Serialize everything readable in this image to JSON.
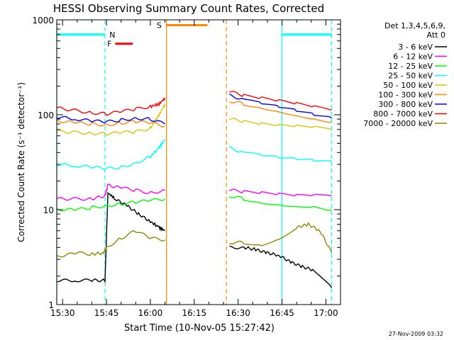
{
  "chart_data": {
    "type": "line",
    "title": "HESSI Observing Summary Count Rates, Corrected",
    "xlabel": "Start Time (10-Nov-05 15:27:42)",
    "ylabel": "Corrected Count Rate (s⁻¹ detector⁻¹)",
    "yscale": "log",
    "ylim": [
      1,
      1000
    ],
    "xlim_minutes": [
      -2.0,
      95.0
    ],
    "x_ticks": [
      {
        "label": "15:30",
        "minute": 0
      },
      {
        "label": "15:45",
        "minute": 15
      },
      {
        "label": "16:00",
        "minute": 30
      },
      {
        "label": "16:15",
        "minute": 45
      },
      {
        "label": "16:30",
        "minute": 60
      },
      {
        "label": "16:45",
        "minute": 75
      },
      {
        "label": "17:00",
        "minute": 90
      }
    ],
    "y_ticks": [
      {
        "label": "1",
        "value": 1
      },
      {
        "label": "10",
        "value": 10
      },
      {
        "label": "100",
        "value": 100
      },
      {
        "label": "1000",
        "value": 1000
      }
    ],
    "legend": {
      "header": [
        "Det 1,3,4,5,6,9,",
        "Att 0"
      ],
      "placement": "right"
    },
    "series": [
      {
        "name": "3 - 6 keV",
        "color": "#000000",
        "segments": [
          [
            [
              -2,
              1.8
            ],
            [
              5,
              1.8
            ],
            [
              10,
              1.8
            ],
            [
              14.5,
              1.8
            ],
            [
              15.5,
              15
            ],
            [
              18,
              13
            ],
            [
              22,
              11
            ],
            [
              26,
              9
            ],
            [
              30,
              7.5
            ],
            [
              33,
              6.5
            ],
            [
              35,
              6
            ]
          ],
          [
            [
              57,
              4
            ],
            [
              62,
              4
            ],
            [
              66,
              3.8
            ],
            [
              70,
              3.5
            ],
            [
              74,
              3.3
            ],
            [
              78,
              2.8
            ],
            [
              82,
              2.5
            ],
            [
              86,
              2.3
            ],
            [
              92,
              1.5
            ]
          ]
        ]
      },
      {
        "name": "6 - 12 keV",
        "color": "#ff00ff",
        "segments": [
          [
            [
              -2,
              13
            ],
            [
              5,
              13
            ],
            [
              10,
              13
            ],
            [
              14.5,
              14
            ],
            [
              15.5,
              18
            ],
            [
              20,
              17
            ],
            [
              25,
              16
            ],
            [
              30,
              15
            ],
            [
              35,
              16
            ]
          ],
          [
            [
              57,
              16
            ],
            [
              62,
              15.5
            ],
            [
              68,
              15
            ],
            [
              74,
              14.5
            ],
            [
              80,
              14
            ],
            [
              86,
              14
            ],
            [
              92,
              14
            ]
          ]
        ]
      },
      {
        "name": "12 - 25 keV",
        "color": "#00ff00",
        "segments": [
          [
            [
              -2,
              10
            ],
            [
              5,
              10
            ],
            [
              10,
              10.5
            ],
            [
              15,
              11
            ],
            [
              20,
              11.5
            ],
            [
              25,
              12
            ],
            [
              30,
              12.5
            ],
            [
              35,
              13
            ]
          ],
          [
            [
              57,
              14
            ],
            [
              62,
              13
            ],
            [
              68,
              12
            ],
            [
              74,
              11.5
            ],
            [
              80,
              11
            ],
            [
              86,
              11
            ],
            [
              92,
              10
            ]
          ]
        ]
      },
      {
        "name": "25 - 50 keV",
        "color": "#00ffff",
        "segments": [
          [
            [
              -2,
              30
            ],
            [
              5,
              29
            ],
            [
              10,
              28
            ],
            [
              15,
              27
            ],
            [
              20,
              28
            ],
            [
              25,
              31
            ],
            [
              30,
              36
            ],
            [
              33,
              45
            ],
            [
              35,
              55
            ]
          ],
          [
            [
              57,
              45
            ],
            [
              62,
              40
            ],
            [
              68,
              37
            ],
            [
              74,
              35
            ],
            [
              80,
              34
            ],
            [
              86,
              33
            ],
            [
              92,
              32
            ]
          ]
        ]
      },
      {
        "name": "50 - 100 keV",
        "color": "#d4c800",
        "segments": [
          [
            [
              -2,
              67
            ],
            [
              5,
              65
            ],
            [
              10,
              64
            ],
            [
              15,
              63
            ],
            [
              20,
              65
            ],
            [
              25,
              66
            ],
            [
              30,
              72
            ],
            [
              33,
              100
            ],
            [
              35,
              130
            ]
          ],
          [
            [
              57,
              90
            ],
            [
              62,
              85
            ],
            [
              68,
              80
            ],
            [
              74,
              77
            ],
            [
              80,
              75
            ],
            [
              86,
              73
            ],
            [
              92,
              70
            ]
          ]
        ]
      },
      {
        "name": "100 - 300 keV",
        "color": "#ff8800",
        "segments": [
          [
            [
              -2,
              86
            ],
            [
              5,
              82
            ],
            [
              10,
              80
            ],
            [
              15,
              78
            ],
            [
              20,
              82
            ],
            [
              25,
              85
            ],
            [
              30,
              82
            ],
            [
              35,
              76
            ]
          ],
          [
            [
              57,
              140
            ],
            [
              62,
              130
            ],
            [
              68,
              120
            ],
            [
              74,
              110
            ],
            [
              80,
              100
            ],
            [
              86,
              92
            ],
            [
              92,
              85
            ]
          ]
        ]
      },
      {
        "name": "300 - 800 keV",
        "color": "#0000ff",
        "segments": [
          [
            [
              -2,
              95
            ],
            [
              5,
              90
            ],
            [
              10,
              86
            ],
            [
              15,
              84
            ],
            [
              20,
              88
            ],
            [
              25,
              92
            ],
            [
              30,
              90
            ],
            [
              35,
              80
            ]
          ],
          [
            [
              57,
              160
            ],
            [
              62,
              145
            ],
            [
              68,
              130
            ],
            [
              74,
              120
            ],
            [
              80,
              110
            ],
            [
              86,
              100
            ],
            [
              92,
              92
            ]
          ]
        ]
      },
      {
        "name": "800 - 7000 keV",
        "color": "#ff0000",
        "segments": [
          [
            [
              -2,
              118
            ],
            [
              5,
              110
            ],
            [
              10,
              105
            ],
            [
              15,
              102
            ],
            [
              20,
              108
            ],
            [
              25,
              115
            ],
            [
              30,
              122
            ],
            [
              33,
              130
            ],
            [
              35,
              150
            ]
          ],
          [
            [
              57,
              175
            ],
            [
              62,
              160
            ],
            [
              68,
              150
            ],
            [
              74,
              140
            ],
            [
              80,
              130
            ],
            [
              86,
              120
            ],
            [
              92,
              112
            ]
          ]
        ]
      },
      {
        "name": "7000 - 20000 keV",
        "color": "#8b8b00",
        "segments": [
          [
            [
              -2,
              3.2
            ],
            [
              5,
              3.5
            ],
            [
              10,
              3.4
            ],
            [
              14,
              3.5
            ],
            [
              15,
              4
            ],
            [
              20,
              5
            ],
            [
              25,
              6
            ],
            [
              30,
              5
            ],
            [
              35,
              4.8
            ]
          ],
          [
            [
              57,
              4.5
            ],
            [
              62,
              4.5
            ],
            [
              68,
              4.3
            ],
            [
              74,
              5
            ],
            [
              80,
              6.5
            ],
            [
              84,
              7
            ],
            [
              88,
              6
            ],
            [
              92,
              3.5
            ]
          ]
        ]
      }
    ],
    "annotations": [
      {
        "label": "N",
        "color": "#00c8c8"
      },
      {
        "label": "F",
        "color": "#ff0000"
      },
      {
        "label": "S",
        "color": "#ff8800"
      }
    ],
    "flag_bars": [
      {
        "name": "N",
        "color": "#00ffff",
        "segments": [
          [
            -2,
            14.5
          ],
          [
            75,
            92
          ]
        ],
        "level": 700
      },
      {
        "name": "F",
        "color": "#ff0000",
        "segments": [
          [
            18,
            24
          ]
        ],
        "level": 560
      },
      {
        "name": "S",
        "color": "#ff8800",
        "segments": [
          [
            35.5,
            49.5
          ]
        ],
        "level": 880
      }
    ],
    "vertical_markers": [
      {
        "minute": -2,
        "color": "#00ffff",
        "style": "solid"
      },
      {
        "minute": 14.5,
        "color": "#00ffff",
        "style": "dashed"
      },
      {
        "minute": 35.5,
        "color": "#ff8800",
        "style": "solid"
      },
      {
        "minute": 56,
        "color": "#ff8800",
        "style": "dashed"
      },
      {
        "minute": 75,
        "color": "#00ffff",
        "style": "solid"
      },
      {
        "minute": 92,
        "color": "#00ffff",
        "style": "dashed"
      }
    ],
    "grid": false
  },
  "footer": {
    "timestamp": "27-Nov-2009 03:32"
  }
}
